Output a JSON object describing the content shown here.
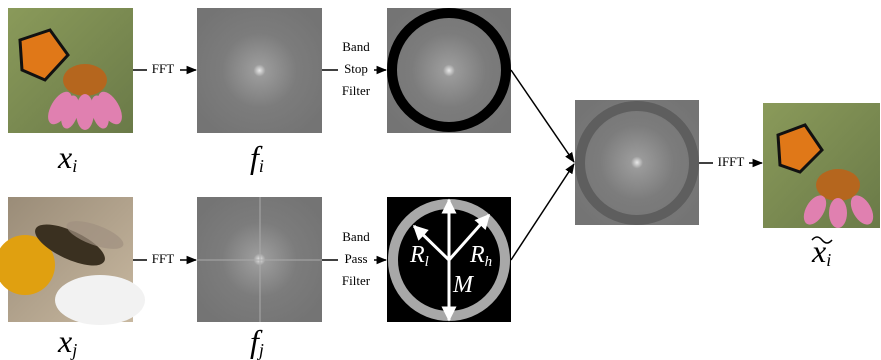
{
  "top_row": {
    "input_label": {
      "base": "x",
      "sub": "i"
    },
    "fft": "FFT",
    "spectrum_label": {
      "base": "f",
      "sub": "i"
    },
    "filter": [
      "Band",
      "Stop",
      "Filter"
    ]
  },
  "bottom_row": {
    "input_label": {
      "base": "x",
      "sub": "j"
    },
    "fft": "FFT",
    "spectrum_label": {
      "base": "f",
      "sub": "j"
    },
    "filter": [
      "Band",
      "Pass",
      "Filter"
    ],
    "radii": {
      "inner": {
        "base": "R",
        "sub": "l"
      },
      "outer": {
        "base": "R",
        "sub": "h"
      },
      "size": "M"
    }
  },
  "output": {
    "ifft": "IFFT",
    "label": {
      "base": "x",
      "sub": "i"
    }
  }
}
